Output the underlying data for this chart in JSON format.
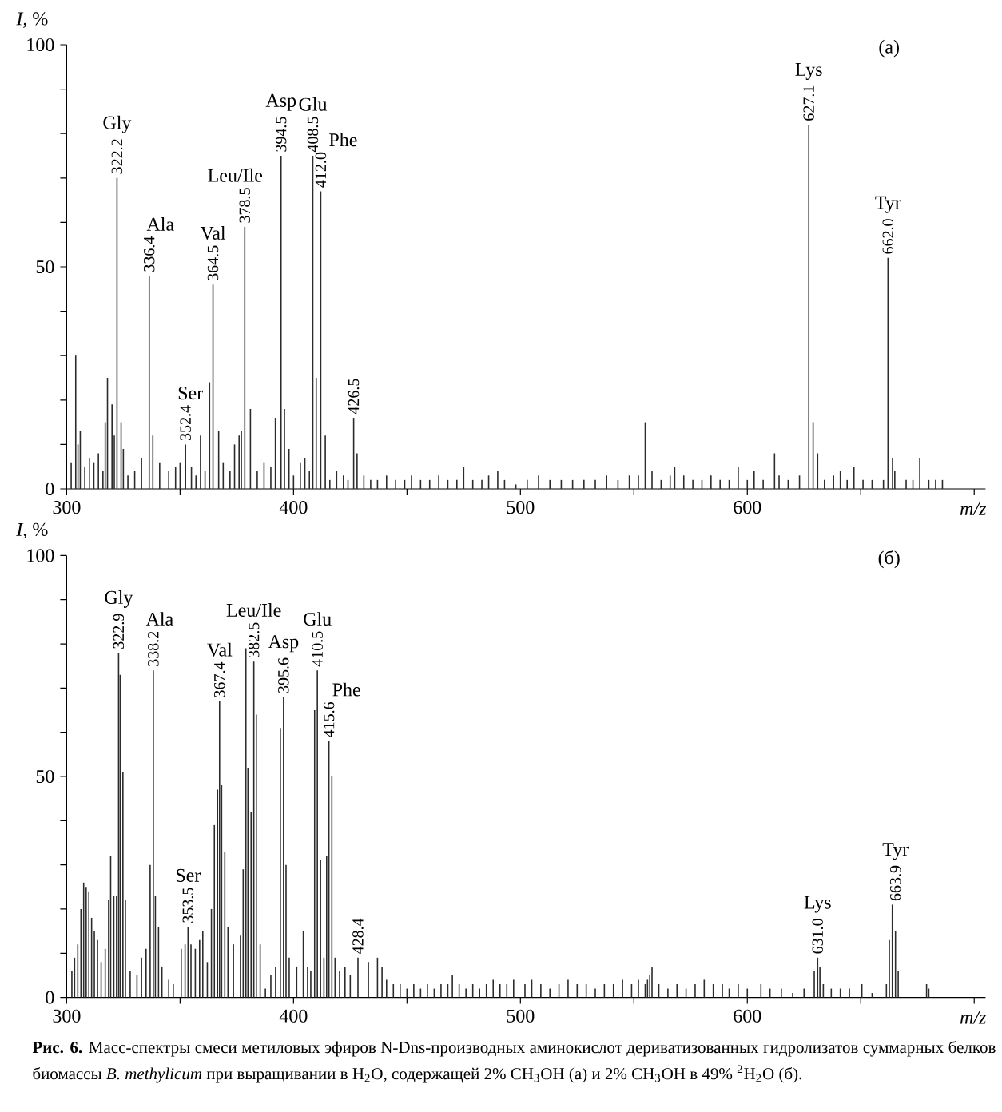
{
  "chart_data": [
    {
      "type": "bar",
      "title": "(а)",
      "xlabel": "m/z",
      "ylabel": "*I*, %",
      "color": "#2b2b2b",
      "xlim": [
        300,
        705
      ],
      "xticks": [
        300,
        {
          "value": 350,
          "label": null
        },
        400,
        {
          "value": 450,
          "label": null
        },
        500,
        {
          "value": 550,
          "label": null
        },
        600,
        {
          "value": 650,
          "label": null
        },
        {
          "value": 700,
          "label": null
        }
      ],
      "ylim": [
        0,
        100
      ],
      "yticks": [
        0,
        {
          "value": 10,
          "label": null
        },
        {
          "value": 20,
          "label": null
        },
        {
          "value": 30,
          "label": null
        },
        {
          "value": 40,
          "label": null
        },
        50,
        {
          "value": 60,
          "label": null
        },
        {
          "value": 70,
          "label": null
        },
        {
          "value": 80,
          "label": null
        },
        {
          "value": 90,
          "label": null
        },
        100
      ],
      "x": [
        302,
        304,
        305,
        306,
        308,
        310,
        312,
        314,
        316,
        317,
        318,
        320,
        321,
        322.2,
        324,
        325,
        327,
        330,
        333,
        336.4,
        338,
        341,
        345,
        348,
        350,
        352.4,
        355,
        357,
        359,
        361,
        363,
        364.5,
        367,
        369,
        372,
        374,
        376,
        377,
        378.5,
        381,
        384,
        387,
        390,
        392,
        394.5,
        396,
        398,
        400,
        403,
        405,
        407,
        408.5,
        410,
        412.0,
        414,
        416,
        419,
        422,
        424,
        426.5,
        428,
        431,
        434,
        437,
        441,
        445,
        449,
        452,
        456,
        460,
        464,
        468,
        472,
        475,
        479,
        483,
        486,
        490,
        493,
        498,
        503,
        508,
        513,
        518,
        523,
        528,
        533,
        538,
        543,
        548,
        552,
        555,
        558,
        562,
        566,
        568,
        572,
        576,
        580,
        584,
        588,
        592,
        596,
        600,
        603,
        607,
        612,
        614,
        618,
        623,
        627.1,
        629,
        631,
        634,
        638,
        641,
        644,
        647,
        651,
        655,
        660,
        662.0,
        664,
        665,
        670,
        673,
        676,
        680,
        683,
        686
      ],
      "values": [
        6,
        30,
        10,
        13,
        5,
        7,
        6,
        8,
        4,
        15,
        25,
        19,
        12,
        70,
        15,
        9,
        3,
        4,
        7,
        48,
        12,
        6,
        4,
        5,
        6,
        10,
        5,
        3,
        12,
        4,
        24,
        46,
        13,
        6,
        4,
        10,
        12,
        13,
        59,
        18,
        4,
        6,
        5,
        16,
        75,
        18,
        9,
        3,
        6,
        7,
        4,
        75,
        25,
        67,
        12,
        2,
        4,
        3,
        2,
        16,
        8,
        3,
        2,
        2,
        3,
        2,
        2,
        3,
        2,
        2,
        3,
        2,
        2,
        5,
        2,
        2,
        3,
        4,
        2,
        1,
        2,
        3,
        2,
        2,
        2,
        2,
        2,
        3,
        2,
        3,
        3,
        15,
        4,
        2,
        3,
        5,
        3,
        2,
        2,
        3,
        2,
        2,
        5,
        2,
        4,
        2,
        8,
        3,
        2,
        3,
        82,
        15,
        8,
        2,
        3,
        4,
        2,
        5,
        2,
        2,
        2,
        52,
        7,
        4,
        2,
        2,
        7,
        2,
        2,
        2
      ],
      "annotations": [
        {
          "text": "322.2",
          "x": 322.2,
          "y": 70
        },
        {
          "text": "Gly",
          "x": 322.2,
          "y": 70
        },
        {
          "text": "336.4",
          "x": 336.4,
          "y": 48
        },
        {
          "text": "Ala",
          "x": 336.4,
          "y": 48
        },
        {
          "text": "352.4",
          "x": 352.4,
          "y": 10
        },
        {
          "text": "Ser",
          "x": 352.4,
          "y": 10
        },
        {
          "text": "364.5",
          "x": 364.5,
          "y": 46
        },
        {
          "text": "Val",
          "x": 364.5,
          "y": 46
        },
        {
          "text": "378.5",
          "x": 378.5,
          "y": 59
        },
        {
          "text": "Leu/Ile",
          "x": 378.5,
          "y": 59
        },
        {
          "text": "394.5",
          "x": 394.5,
          "y": 75
        },
        {
          "text": "Asp",
          "x": 394.5,
          "y": 75
        },
        {
          "text": "408.5",
          "x": 408.5,
          "y": 75
        },
        {
          "text": "Glu",
          "x": 408.5,
          "y": 75
        },
        {
          "text": "412.0",
          "x": 412.0,
          "y": 67
        },
        {
          "text": "Phe",
          "x": 412.0,
          "y": 67
        },
        {
          "text": "426.5",
          "x": 426.5,
          "y": 16
        },
        {
          "text": "627.1",
          "x": 627.1,
          "y": 82
        },
        {
          "text": "Lys",
          "x": 627.1,
          "y": 82
        },
        {
          "text": "662.0",
          "x": 662.0,
          "y": 52
        },
        {
          "text": "Tyr",
          "x": 662.0,
          "y": 52
        }
      ]
    },
    {
      "type": "bar",
      "title": "(б)",
      "xlabel": "m/z",
      "ylabel": "*I*, %",
      "color": "#2b2b2b",
      "xlim": [
        300,
        705
      ],
      "xticks": [
        300,
        {
          "value": 350,
          "label": null
        },
        400,
        {
          "value": 450,
          "label": null
        },
        500,
        {
          "value": 550,
          "label": null
        },
        600,
        {
          "value": 650,
          "label": null
        },
        {
          "value": 700,
          "label": null
        }
      ],
      "ylim": [
        0,
        100
      ],
      "yticks": [
        0,
        {
          "value": 10,
          "label": null
        },
        {
          "value": 20,
          "label": null
        },
        {
          "value": 30,
          "label": null
        },
        {
          "value": 40,
          "label": null
        },
        50,
        {
          "value": 60,
          "label": null
        },
        {
          "value": 70,
          "label": null
        },
        {
          "value": 80,
          "label": null
        },
        {
          "value": 90,
          "label": null
        },
        100
      ],
      "x": [
        302.3,
        303.5,
        304.9,
        306.3,
        307.5,
        308.6,
        309.8,
        311.0,
        312.2,
        313.6,
        315.2,
        317.0,
        318.5,
        319.4,
        320.8,
        322.0,
        322.9,
        323.6,
        324.8,
        325.9,
        328,
        331,
        333,
        335,
        336.8,
        338.2,
        339.1,
        340.5,
        342,
        345,
        347,
        350.5,
        352.2,
        353.5,
        354.8,
        356.7,
        358.6,
        360,
        362,
        363.8,
        365.1,
        366.5,
        367.4,
        368.3,
        369.7,
        371.1,
        373.5,
        376.6,
        377.8,
        379.0,
        379.9,
        381.3,
        382.5,
        383.6,
        385.3,
        387.6,
        390.0,
        392.1,
        394.2,
        395.6,
        396.7,
        398.1,
        401.4,
        404.3,
        406.2,
        407.6,
        409.3,
        410.5,
        411.9,
        413.4,
        414.6,
        415.6,
        416.9,
        418.3,
        420.3,
        422.7,
        425.0,
        428.4,
        433,
        437,
        439,
        441,
        444,
        447,
        450,
        453,
        456,
        459,
        462,
        465,
        468,
        470,
        473,
        476,
        479,
        482,
        485,
        488,
        491,
        494,
        497,
        502,
        505,
        509,
        513,
        517,
        521,
        525,
        529,
        533,
        537,
        541,
        545,
        549,
        552,
        555,
        556,
        557,
        558,
        561,
        565,
        569,
        573,
        577,
        581,
        585,
        589,
        592,
        596,
        600,
        606,
        610,
        615,
        620,
        625,
        629.5,
        631.0,
        632,
        633.5,
        637,
        641,
        645,
        650.5,
        655,
        661.3,
        662.6,
        663.9,
        665.3,
        666.5,
        679,
        680
      ],
      "values": [
        6,
        9,
        12,
        20,
        26,
        25,
        24,
        18,
        15,
        13,
        8,
        11,
        22,
        32,
        23,
        23,
        78,
        73,
        51,
        22,
        6,
        5,
        9,
        11,
        30,
        74,
        23,
        16,
        7,
        4,
        3,
        11,
        12,
        16,
        12,
        11,
        13,
        15,
        8,
        20,
        39,
        47,
        67,
        48,
        33,
        16,
        12,
        14,
        29,
        79,
        52,
        42,
        76,
        64,
        12,
        2,
        5,
        7,
        61,
        68,
        30,
        9,
        7,
        15,
        7,
        6,
        65,
        74,
        31,
        9,
        32,
        58,
        50,
        9,
        6,
        7,
        5,
        9,
        8,
        9,
        7,
        4,
        3,
        3,
        2,
        3,
        2,
        3,
        2,
        3,
        3,
        5,
        3,
        2,
        3,
        2,
        3,
        4,
        3,
        3,
        4,
        3,
        4,
        3,
        2,
        3,
        4,
        3,
        3,
        2,
        3,
        3,
        4,
        3,
        4,
        3,
        4,
        5,
        7,
        3,
        2,
        3,
        2,
        3,
        4,
        3,
        3,
        2,
        3,
        2,
        3,
        2,
        2,
        1,
        2,
        6,
        9,
        7,
        3,
        2,
        2,
        2,
        3,
        1,
        3,
        13,
        21,
        15,
        6,
        3,
        2
      ],
      "annotations": [
        {
          "text": "322.9",
          "x": 322.9,
          "y": 78
        },
        {
          "text": "Gly",
          "x": 322.9,
          "y": 78
        },
        {
          "text": "338.2",
          "x": 338.2,
          "y": 74
        },
        {
          "text": "Ala",
          "x": 338.2,
          "y": 74
        },
        {
          "text": "353.5",
          "x": 353.5,
          "y": 16
        },
        {
          "text": "Ser",
          "x": 353.5,
          "y": 16
        },
        {
          "text": "367.4",
          "x": 367.4,
          "y": 67
        },
        {
          "text": "Val",
          "x": 367.4,
          "y": 67
        },
        {
          "text": "382.5",
          "x": 382.5,
          "y": 76
        },
        {
          "text": "Leu/Ile",
          "x": 382.5,
          "y": 76
        },
        {
          "text": "395.6",
          "x": 395.6,
          "y": 68
        },
        {
          "text": "Asp",
          "x": 395.6,
          "y": 68
        },
        {
          "text": "410.5",
          "x": 410.5,
          "y": 74
        },
        {
          "text": "Glu",
          "x": 410.5,
          "y": 74
        },
        {
          "text": "415.6",
          "x": 415.6,
          "y": 58
        },
        {
          "text": "Phe",
          "x": 415.6,
          "y": 58
        },
        {
          "text": "428.4",
          "x": 428.4,
          "y": 9
        },
        {
          "text": "631.0",
          "x": 631.0,
          "y": 9
        },
        {
          "text": "Lys",
          "x": 631.0,
          "y": 9
        },
        {
          "text": "663.9",
          "x": 663.9,
          "y": 21
        },
        {
          "text": "Tyr",
          "x": 663.9,
          "y": 21
        },
        "**Рис. 6.** Масс-спектры смеси метиловых эфиров N-Dns-производных аминокислот дериватизованных гидролизатов суммарных белков биомассы *B. methylicum* при выращивании в H$_{2}$O, содержащей 2% CH$_{3}$OH (а) и 2% CH$_{3}$OH в 49% $^{2}$H$_{2}$O (б)."
      ]
    }
  ]
}
